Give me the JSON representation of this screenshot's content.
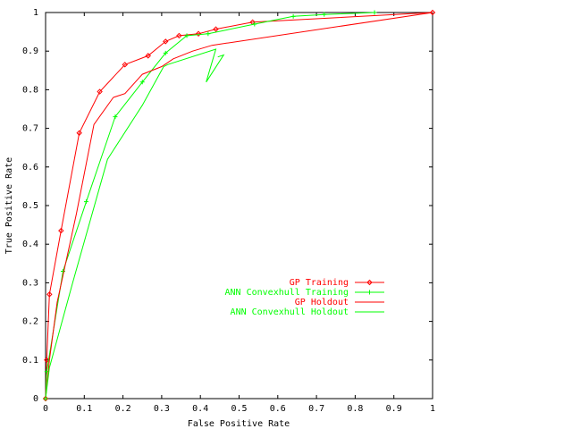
{
  "chart_data": {
    "type": "line",
    "title": "",
    "xlabel": "False Positive Rate",
    "ylabel": "True Positive Rate",
    "xlim": [
      0,
      1
    ],
    "ylim": [
      0,
      1
    ],
    "xticks": [
      "0",
      "0.1",
      "0.2",
      "0.3",
      "0.4",
      "0.5",
      "0.6",
      "0.7",
      "0.8",
      "0.9",
      "1"
    ],
    "yticks": [
      "0",
      "0.1",
      "0.2",
      "0.3",
      "0.4",
      "0.5",
      "0.6",
      "0.7",
      "0.8",
      "0.9",
      "1"
    ],
    "grid": false,
    "legend_position": "right-middle",
    "series": [
      {
        "name": "GP Training",
        "color": "#ff0000",
        "marker": "diamond",
        "x": [
          0,
          0.003,
          0.01,
          0.04,
          0.087,
          0.14,
          0.205,
          0.265,
          0.31,
          0.345,
          0.395,
          0.44,
          0.535,
          1
        ],
        "y": [
          0,
          0.1,
          0.27,
          0.435,
          0.688,
          0.795,
          0.865,
          0.888,
          0.925,
          0.94,
          0.945,
          0.957,
          0.975,
          1
        ]
      },
      {
        "name": "ANN Convexhull Training",
        "color": "#00ff00",
        "marker": "plus",
        "x": [
          0,
          0.003,
          0.045,
          0.105,
          0.18,
          0.25,
          0.31,
          0.365,
          0.42,
          0.54,
          0.64,
          0.72,
          0.85
        ],
        "y": [
          0,
          0.07,
          0.33,
          0.51,
          0.73,
          0.82,
          0.895,
          0.94,
          0.945,
          0.97,
          0.99,
          0.995,
          1
        ]
      },
      {
        "name": "GP Holdout",
        "color": "#ff0000",
        "marker": "none",
        "x": [
          0,
          0.01,
          0.03,
          0.08,
          0.125,
          0.175,
          0.205,
          0.25,
          0.3,
          0.33,
          0.38,
          0.43,
          1
        ],
        "y": [
          0,
          0.1,
          0.25,
          0.48,
          0.71,
          0.78,
          0.79,
          0.84,
          0.86,
          0.88,
          0.9,
          0.915,
          1
        ]
      },
      {
        "name": "ANN Convexhull Holdout",
        "color": "#00ff00",
        "marker": "none",
        "x": [
          0,
          0.01,
          0.07,
          0.16,
          0.25,
          0.305,
          0.315,
          0.44,
          0.415,
          0.46,
          0.445
        ],
        "y": [
          0,
          0.08,
          0.3,
          0.62,
          0.76,
          0.86,
          0.865,
          0.905,
          0.82,
          0.89,
          0.885
        ]
      }
    ]
  }
}
